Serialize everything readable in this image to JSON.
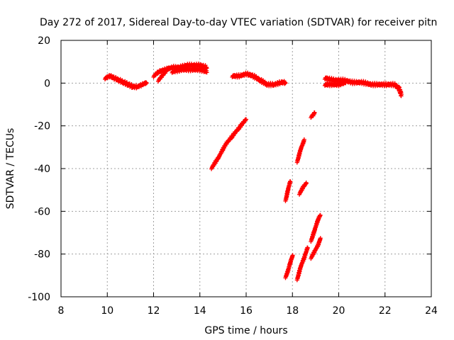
{
  "chart_data": {
    "type": "scatter",
    "title": "Day 272 of 2017, Sidereal Day-to-day VTEC variation (SDTVAR) for receiver pitn",
    "xlabel": "GPS time / hours",
    "ylabel": "SDTVAR / TECUs",
    "xlim": [
      8,
      24
    ],
    "ylim": [
      -100,
      20
    ],
    "xticks": [
      "8",
      "10",
      "12",
      "14",
      "16",
      "18",
      "20",
      "22",
      "24"
    ],
    "yticks": [
      "20",
      "0",
      "-20",
      "-40",
      "-60",
      "-80",
      "-100"
    ],
    "grid": true,
    "marker": "+",
    "color": "#ff0000",
    "segments": [
      {
        "x": [
          9.9,
          10.1,
          10.3,
          10.5,
          10.7,
          10.9,
          11.1,
          11.3,
          11.5,
          11.7
        ],
        "y": [
          2,
          3,
          2,
          1,
          0,
          -1,
          -2,
          -2,
          -1,
          0
        ]
      },
      {
        "x": [
          12.2,
          12.35,
          12.5,
          12.65
        ],
        "y": [
          1,
          3,
          5,
          7
        ]
      },
      {
        "x": [
          12.0,
          12.2,
          12.5,
          12.8,
          13.1,
          13.4,
          13.7,
          14.0,
          14.3
        ],
        "y": [
          3,
          5,
          6,
          7,
          7,
          8,
          8,
          8,
          7
        ]
      },
      {
        "x": [
          12.8,
          13.2,
          13.6,
          14.0,
          14.3
        ],
        "y": [
          5,
          6,
          6,
          6,
          5
        ]
      },
      {
        "x": [
          15.4,
          15.7,
          16.0,
          16.3,
          16.6,
          16.9,
          17.2,
          17.5,
          17.7
        ],
        "y": [
          3,
          3,
          4,
          3,
          1,
          -1,
          -1,
          0,
          0
        ]
      },
      {
        "x": [
          14.5,
          14.8,
          15.1,
          15.4,
          15.7,
          16.0
        ],
        "y": [
          -40,
          -35,
          -29,
          -25,
          -21,
          -17
        ]
      },
      {
        "x": [
          17.7,
          17.8,
          17.9
        ],
        "y": [
          -55,
          -50,
          -46
        ]
      },
      {
        "x": [
          18.2,
          18.35,
          18.5
        ],
        "y": [
          -37,
          -31,
          -27
        ]
      },
      {
        "x": [
          18.8,
          18.9,
          18.95
        ],
        "y": [
          -16,
          -15,
          -14
        ]
      },
      {
        "x": [
          18.3,
          18.45,
          18.6
        ],
        "y": [
          -52,
          -49,
          -47
        ]
      },
      {
        "x": [
          17.7,
          17.8,
          17.9,
          18.0
        ],
        "y": [
          -91,
          -88,
          -84,
          -81
        ]
      },
      {
        "x": [
          18.2,
          18.35,
          18.5,
          18.65
        ],
        "y": [
          -92,
          -86,
          -82,
          -77
        ]
      },
      {
        "x": [
          18.8,
          18.95,
          19.1,
          19.2
        ],
        "y": [
          -74,
          -69,
          -64,
          -62
        ]
      },
      {
        "x": [
          18.8,
          18.95,
          19.1,
          19.2
        ],
        "y": [
          -82,
          -79,
          -76,
          -73
        ]
      },
      {
        "x": [
          19.4,
          19.8,
          20.2,
          20.6,
          21.0,
          21.4,
          21.8,
          22.1,
          22.4,
          22.6,
          22.7
        ],
        "y": [
          2,
          1,
          1,
          0,
          0,
          -1,
          -1,
          -1,
          -1,
          -3,
          -6
        ]
      },
      {
        "x": [
          19.4,
          19.7,
          20.0,
          20.3
        ],
        "y": [
          -1,
          -1,
          -1,
          0
        ]
      }
    ]
  }
}
